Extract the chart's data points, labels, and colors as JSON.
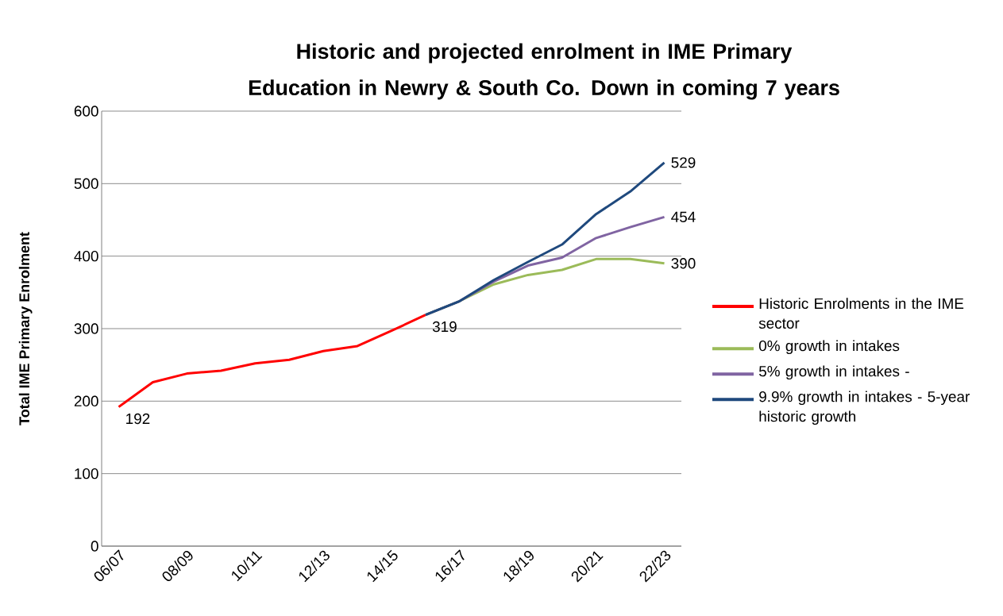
{
  "chart_data": {
    "type": "line",
    "title": "Historic and projected enrolment in IME Primary Education in Newry & South Co. Down in coming 7 years",
    "ylabel": "Total IME Primary Enrolment",
    "categories": [
      "06/07",
      null,
      "08/09",
      null,
      "10/11",
      null,
      "12/13",
      null,
      "14/15",
      null,
      "16/17",
      null,
      "18/19",
      null,
      "20/21",
      null,
      "22/23"
    ],
    "series": [
      {
        "name": "Historic Enrolments in the IME sector",
        "color": "#ff0000",
        "values": [
          192,
          226,
          238,
          242,
          252,
          257,
          269,
          276,
          297,
          319,
          null,
          null,
          null,
          null,
          null,
          null,
          null
        ],
        "value_labels": [
          "192",
          null,
          null,
          null,
          null,
          null,
          null,
          null,
          null,
          "319",
          null,
          null,
          null,
          null,
          null,
          null,
          null
        ]
      },
      {
        "name": "0% growth in intakes",
        "color": "#9bbb59",
        "values": [
          null,
          null,
          null,
          null,
          null,
          null,
          null,
          null,
          null,
          319,
          338,
          361,
          374,
          381,
          396,
          396,
          390
        ],
        "value_labels": [
          null,
          null,
          null,
          null,
          null,
          null,
          null,
          null,
          null,
          null,
          null,
          null,
          null,
          null,
          null,
          null,
          "390"
        ]
      },
      {
        "name": "5% growth in intakes -",
        "color": "#8064a2",
        "values": [
          null,
          null,
          null,
          null,
          null,
          null,
          null,
          null,
          null,
          319,
          338,
          365,
          387,
          398,
          425,
          440,
          454
        ],
        "value_labels": [
          null,
          null,
          null,
          null,
          null,
          null,
          null,
          null,
          null,
          null,
          null,
          null,
          null,
          null,
          null,
          null,
          "454"
        ]
      },
      {
        "name": "9.9% growth in intakes - 5-year historic growth",
        "color": "#1f497d",
        "values": [
          null,
          null,
          null,
          null,
          null,
          null,
          null,
          null,
          null,
          319,
          338,
          367,
          392,
          416,
          458,
          489,
          529
        ],
        "value_labels": [
          null,
          null,
          null,
          null,
          null,
          null,
          null,
          null,
          null,
          null,
          null,
          null,
          null,
          null,
          null,
          null,
          "529"
        ]
      }
    ],
    "ylim": [
      0,
      600
    ],
    "yticks": [
      0,
      100,
      200,
      300,
      400,
      500,
      600
    ],
    "grid": "y",
    "legend": "right"
  }
}
